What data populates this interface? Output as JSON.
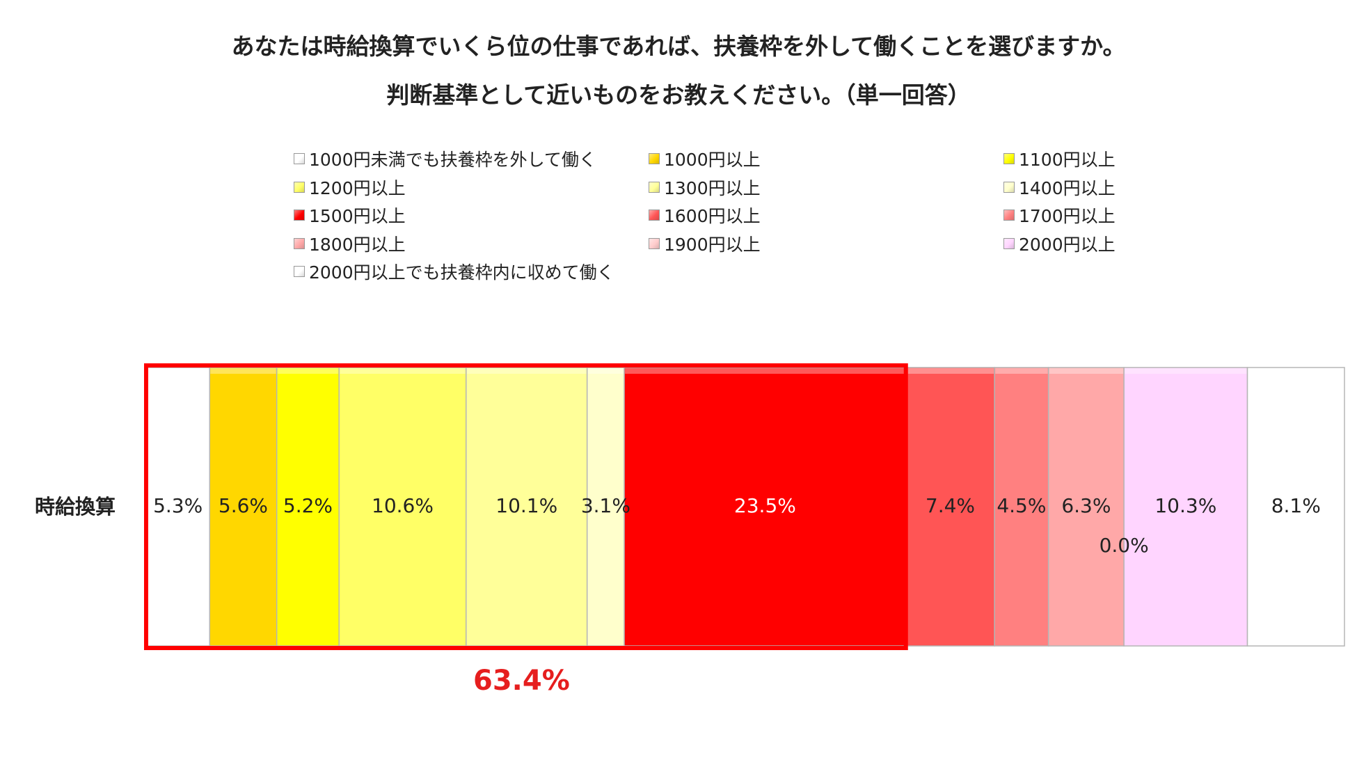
{
  "title": {
    "line1": "あなたは時給換算でいくら位の仕事であれば、扶養枠を外して働くことを選びますか。",
    "line2": "判断基準として近いものをお教えください。（単一回答）"
  },
  "chart_data": {
    "type": "bar",
    "orientation": "horizontal-stacked-100",
    "categories": [
      "時給換算"
    ],
    "series": [
      {
        "name": "1000円未満でも扶養枠を外して働く",
        "values": [
          5.3
        ],
        "color": "#ffffff"
      },
      {
        "name": "1000円以上",
        "values": [
          5.6
        ],
        "color": "#ffd700"
      },
      {
        "name": "1100円以上",
        "values": [
          5.2
        ],
        "color": "#ffff00"
      },
      {
        "name": "1200円以上",
        "values": [
          10.6
        ],
        "color": "#ffff66"
      },
      {
        "name": "1300円以上",
        "values": [
          10.1
        ],
        "color": "#ffff99"
      },
      {
        "name": "1400円以上",
        "values": [
          3.1
        ],
        "color": "#ffffcc"
      },
      {
        "name": "1500円以上",
        "values": [
          23.5
        ],
        "color": "#ff0000"
      },
      {
        "name": "1600円以上",
        "values": [
          7.4
        ],
        "color": "#ff5555"
      },
      {
        "name": "1700円以上",
        "values": [
          4.5
        ],
        "color": "#ff8080"
      },
      {
        "name": "1800円以上",
        "values": [
          6.3
        ],
        "color": "#ffa8a8"
      },
      {
        "name": "1900円以上",
        "values": [
          0.0
        ],
        "color": "#ffcccc"
      },
      {
        "name": "2000円以上",
        "values": [
          10.3
        ],
        "color": "#ffd5ff"
      },
      {
        "name": "2000円以上でも扶養枠内に収めて働く",
        "values": [
          8.1
        ],
        "color": "#ffffff"
      }
    ],
    "data_labels": [
      "5.3%",
      "5.6%",
      "5.2%",
      "10.6%",
      "10.1%",
      "3.1%",
      "23.5%",
      "7.4%",
      "4.5%",
      "6.3%",
      "0.0%",
      "10.3%",
      "8.1%"
    ],
    "label_colors": [
      "#222222",
      "#222222",
      "#222222",
      "#222222",
      "#222222",
      "#222222",
      "#ffffff",
      "#222222",
      "#222222",
      "#222222",
      "#222222",
      "#222222",
      "#222222"
    ],
    "highlight": {
      "from_index": 0,
      "to_index": 6,
      "label": "63.4%",
      "color": "#ff0000"
    },
    "legend_position": "top",
    "grid": false
  }
}
